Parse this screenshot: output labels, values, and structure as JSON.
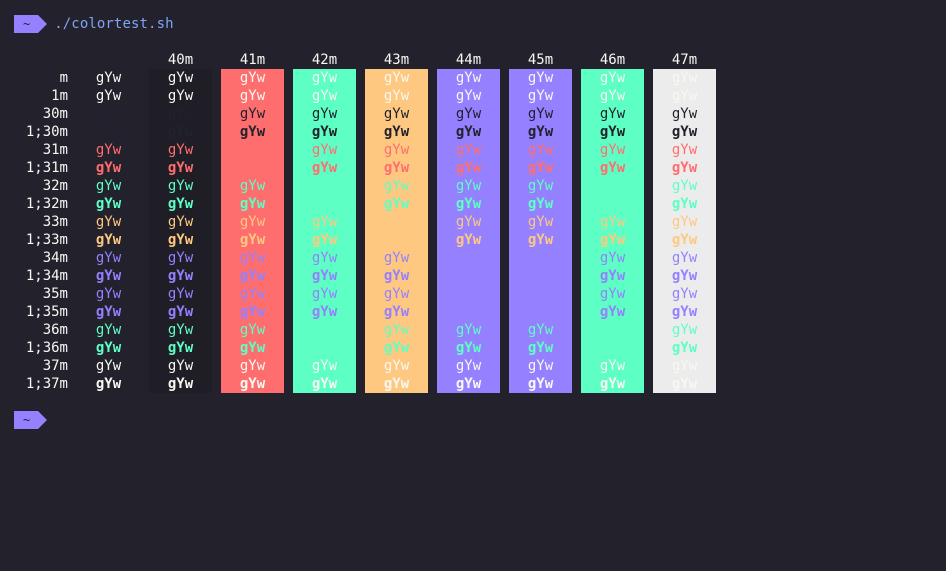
{
  "prompt": {
    "dir": "~",
    "command": "./colortest.sh"
  },
  "second_prompt": {
    "dir": "~"
  },
  "sample_text": "gYw",
  "header": [
    "40m",
    "41m",
    "42m",
    "43m",
    "44m",
    "45m",
    "46m",
    "47m"
  ],
  "row_labels": [
    "m",
    "1m",
    "30m",
    "1;30m",
    "31m",
    "1;31m",
    "32m",
    "1;32m",
    "33m",
    "1;33m",
    "34m",
    "1;34m",
    "35m",
    "1;35m",
    "36m",
    "1;36m",
    "37m",
    "1;37m"
  ],
  "colors": {
    "bg_terminal": "#22212c",
    "black_bg": "#1f1e26",
    "red": "#ff6e6e",
    "green": "#5effc4",
    "yellow": "#ffc880",
    "blue": "#9580ff",
    "magenta": "#9580ff",
    "cyan": "#5effc4",
    "white": "#ececec",
    "default_fg": "#f8f8f2",
    "black_fg": "#22212c",
    "accent": "#9580ff",
    "command": "#80a4f7"
  }
}
